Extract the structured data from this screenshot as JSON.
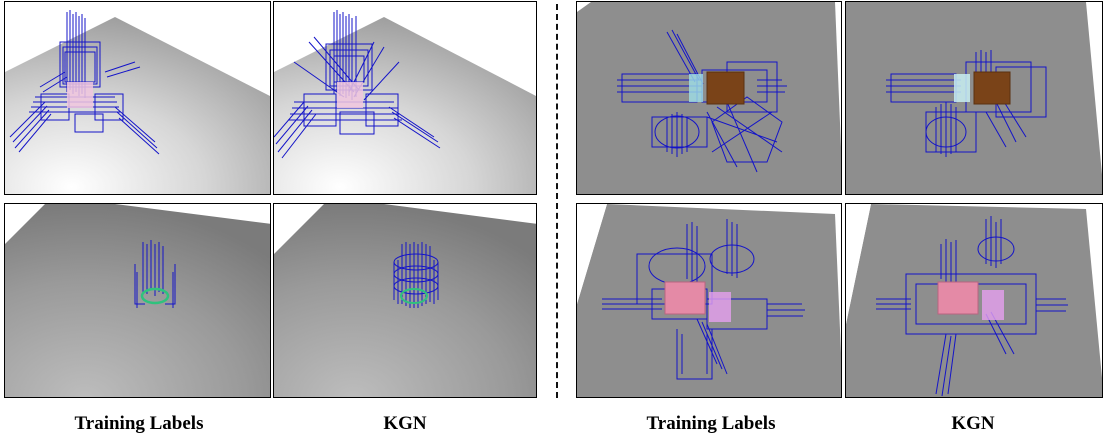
{
  "figure": {
    "captions": {
      "left_training": "Training Labels",
      "left_kgn": "KGN",
      "right_training": "Training Labels",
      "right_kgn": "KGN"
    },
    "colors": {
      "grasp_lines": "#1010c8",
      "ground_light": "#e4e4e4",
      "ground_dark": "#6f6f6f",
      "box_pink": "#e48aa6",
      "box_brown": "#7a4318",
      "ring_green": "#2fc27d"
    }
  }
}
